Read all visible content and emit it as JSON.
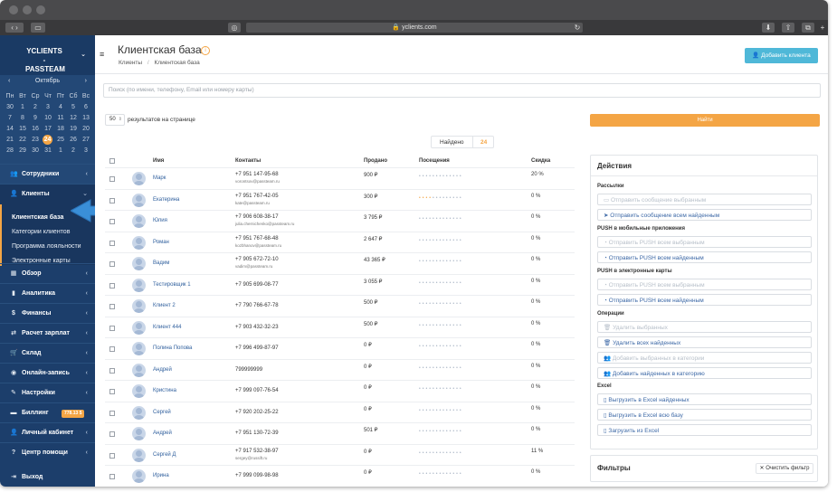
{
  "browser": {
    "url": "yclients.com"
  },
  "brand": {
    "line1": "YCLIENTS -",
    "line2": "PASSTEAM"
  },
  "calendar": {
    "month": "Октябрь",
    "weekdays": [
      "Пн",
      "Вт",
      "Ср",
      "Чт",
      "Пт",
      "Сб",
      "Вс"
    ],
    "weeks": [
      [
        "30",
        "1",
        "2",
        "3",
        "4",
        "5",
        "6"
      ],
      [
        "7",
        "8",
        "9",
        "10",
        "11",
        "12",
        "13"
      ],
      [
        "14",
        "15",
        "16",
        "17",
        "18",
        "19",
        "20"
      ],
      [
        "21",
        "22",
        "23",
        "24",
        "25",
        "26",
        "27"
      ],
      [
        "28",
        "29",
        "30",
        "31",
        "1",
        "2",
        "3"
      ]
    ],
    "today": "24"
  },
  "nav": {
    "employees": "Сотрудники",
    "clients": "Клиенты",
    "sub": [
      "Клиентская база",
      "Категории клиентов",
      "Программа лояльности",
      "Электронные карты"
    ],
    "overview": "Обзор",
    "analytics": "Аналитика",
    "finance": "Финансы",
    "salary": "Расчет зарплат",
    "warehouse": "Склад",
    "online": "Онлайн-запись",
    "settings": "Настройки",
    "billing": "Биллинг",
    "billing_badge": "778.13 $",
    "cabinet": "Личный кабинет",
    "help": "Центр помощи",
    "logout": "Выход"
  },
  "header": {
    "title": "Клиентская база",
    "info": "i",
    "breadcrumb_root": "Клиенты",
    "breadcrumb_sep": "/",
    "breadcrumb_current": "Клиентская база",
    "add_button": "Добавить клиента"
  },
  "search": {
    "placeholder": "Поиск (по имени, телефону, Email или номеру карты)"
  },
  "paging": {
    "per_page": "50",
    "label": "результатов на странице"
  },
  "find_button": "Найти",
  "found": {
    "label": "Найдено",
    "count": "24"
  },
  "table": {
    "columns": [
      "Имя",
      "Контакты",
      "Продано",
      "Посещения",
      "Скидка"
    ],
    "rows": [
      {
        "name": "Марк",
        "phone": "+7 951 147-95-68",
        "email": "vorontsov@passteam.ru",
        "sold": "900 ₽",
        "visits": "• • • • • • • • • •   •   • •",
        "discount": "20 %"
      },
      {
        "name": "Екатерина",
        "phone": "+7 951 767-42-05",
        "email": "kate@passteam.ru",
        "sold": "300 ₽",
        "visits": "• • • • • • • • • •   •   • •",
        "discount": "0 %"
      },
      {
        "name": "Юлия",
        "phone": "+7 906 608-38-17",
        "email": "julia.chernichenko@passteam.ru",
        "sold": "3 795 ₽",
        "visits": "• • • • • • • • • •   •   • •",
        "discount": "0 %"
      },
      {
        "name": "Роман",
        "phone": "+7 951 767-68-48",
        "email": "kozbhanov@passteam.ru",
        "sold": "2 647 ₽",
        "visits": "• • • • • • • • • •   •   • •",
        "discount": "0 %"
      },
      {
        "name": "Вадим",
        "phone": "+7 905 672-72-10",
        "email": "vadim@passteam.ru",
        "sold": "43 365 ₽",
        "visits": "• • • • • • • • • •   •   • •",
        "discount": "0 %"
      },
      {
        "name": "Тестировщик 1",
        "phone": "+7 905 699-08-77",
        "email": "",
        "sold": "3 055 ₽",
        "visits": "• • • • • • • • • •   •   • •",
        "discount": "0 %"
      },
      {
        "name": "Клиент 2",
        "phone": "+7 790 766-67-78",
        "email": "",
        "sold": "500 ₽",
        "visits": "• • • • • • • • • •   •   • •",
        "discount": "0 %"
      },
      {
        "name": "Клиент 444",
        "phone": "+7 903 432-32-23",
        "email": "",
        "sold": "500 ₽",
        "visits": "• • • • • • • • • •   •   • •",
        "discount": "0 %"
      },
      {
        "name": "Полина Попова",
        "phone": "+7 996 499-87-97",
        "email": "",
        "sold": "0 ₽",
        "visits": "• • • • • • • • • •   •   • •",
        "discount": "0 %"
      },
      {
        "name": "Андрей",
        "phone": "799999999",
        "email": "",
        "sold": "0 ₽",
        "visits": "• • • • • • • • • •   •   • •",
        "discount": "0 %"
      },
      {
        "name": "Кристина",
        "phone": "+7 999 097-76-54",
        "email": "",
        "sold": "0 ₽",
        "visits": "• • • • • • • • • •   •   • •",
        "discount": "0 %"
      },
      {
        "name": "Сергей",
        "phone": "+7 920 202-25-22",
        "email": "",
        "sold": "0 ₽",
        "visits": "• • • • • • • • • •   •   • •",
        "discount": "0 %"
      },
      {
        "name": "Андрей",
        "phone": "+7 951 130-72-39",
        "email": "",
        "sold": "501 ₽",
        "visits": "• • • • • • • • • •   •   • •",
        "discount": "0 %"
      },
      {
        "name": "Сергей Д",
        "phone": "+7 917 532-38-97",
        "email": "sergey@russift.ru",
        "sold": "0 ₽",
        "visits": "• • • • • • • • • •   •   • •",
        "discount": "11 %"
      },
      {
        "name": "Ирина",
        "phone": "+7 999 099-98-98",
        "email": "",
        "sold": "0 ₽",
        "visits": "• • • • • • • • • •   •   • •",
        "discount": "0 %"
      }
    ]
  },
  "actions": {
    "title": "Действия",
    "mailing": "Рассылки",
    "send_selected": "Отправить сообщение выбранным",
    "send_all": "Отправить сообщение всем найденным",
    "push_mobile": "PUSH в мобильные приложения",
    "push_mobile_selected": "Отправить PUSH всем выбранным",
    "push_mobile_all": "Отправить PUSH всем найденным",
    "push_cards": "PUSH в электронные карты",
    "push_cards_selected": "Отправить PUSH всем выбранным",
    "push_cards_all": "Отправить PUSH всем найденным",
    "operations": "Операции",
    "delete_selected": "Удалить выбранных",
    "delete_all": "Удалить всех найденных",
    "add_selected_category": "Добавить выбранных в категории",
    "add_all_category": "Добавить найденных в категорию",
    "excel": "Excel",
    "export_found": "Выгрузить в Excel найденных",
    "export_all": "Выгрузить в Excel всю базу",
    "import": "Загрузить из Excel"
  },
  "filters": {
    "title": "Фильтры",
    "clear": "Очистить фильтр"
  },
  "colors": {
    "sidebar": "#1c3e6b",
    "accent": "#f4a545",
    "add_button": "#4fb8d8",
    "link": "#2f5f9d"
  }
}
